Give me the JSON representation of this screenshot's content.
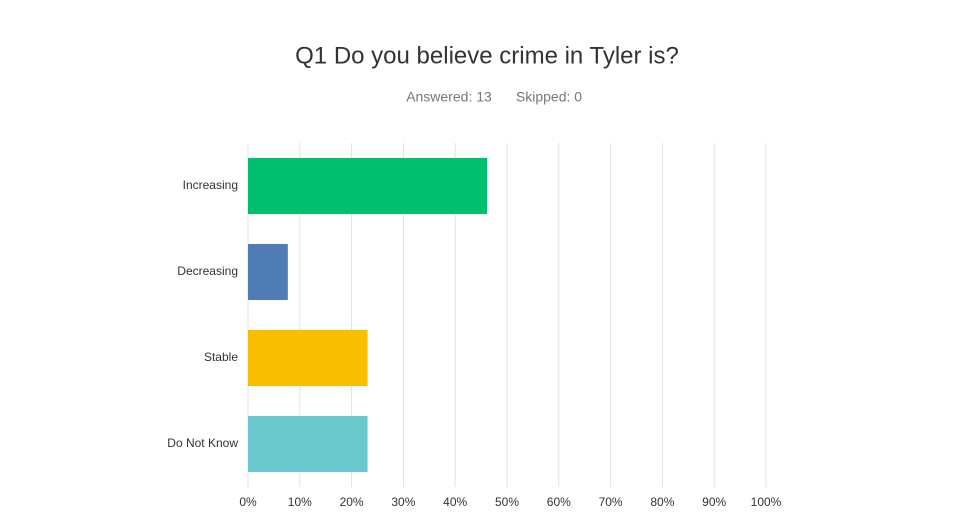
{
  "chart_data": {
    "type": "bar",
    "orientation": "horizontal",
    "title": "Q1 Do you believe crime in Tyler is?",
    "subtitle": [
      "Answered: 13",
      "Skipped: 0"
    ],
    "categories": [
      "Increasing",
      "Decreasing",
      "Stable",
      "Do Not Know"
    ],
    "values": [
      46.15,
      7.69,
      23.08,
      23.08
    ],
    "colors": [
      "#00bf6f",
      "#507cb6",
      "#f9be00",
      "#6bc8cd"
    ],
    "xlim": [
      0,
      100
    ],
    "xticks": [
      {
        "value": 0,
        "label": "0%"
      },
      {
        "value": 10,
        "label": "10%"
      },
      {
        "value": 20,
        "label": "20%"
      },
      {
        "value": 30,
        "label": "30%"
      },
      {
        "value": 40,
        "label": "40%"
      },
      {
        "value": 50,
        "label": "50%"
      },
      {
        "value": 60,
        "label": "60%"
      },
      {
        "value": 70,
        "label": "70%"
      },
      {
        "value": 80,
        "label": "80%"
      },
      {
        "value": 90,
        "label": "90%"
      },
      {
        "value": 100,
        "label": "100%"
      }
    ],
    "grid": true
  }
}
